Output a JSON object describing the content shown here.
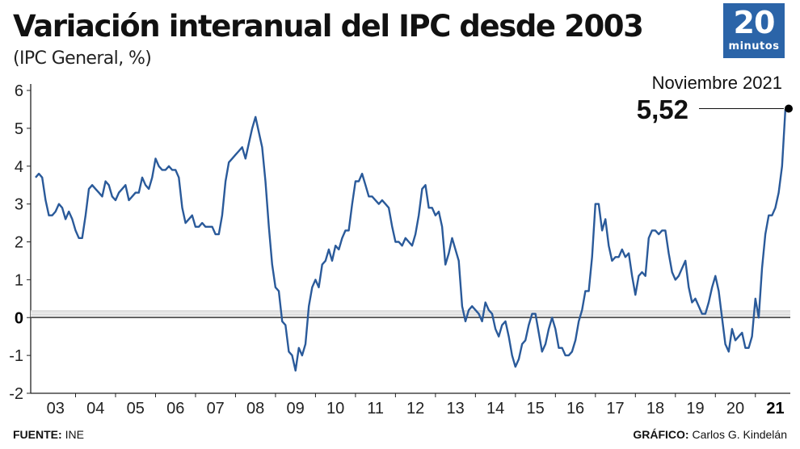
{
  "header": {
    "title": "Variación interanual del IPC desde 2003",
    "subtitle": "(IPC General, %)"
  },
  "logo": {
    "number": "20",
    "word": "minutos",
    "color": "#2b64a8"
  },
  "footer": {
    "source_label": "FUENTE:",
    "source_value": "INE",
    "credit_label": "GRÁFICO:",
    "credit_value": "Carlos G. Kindelán"
  },
  "chart_data": {
    "type": "line",
    "title": "Variación interanual del IPC desde 2003",
    "subtitle": "(IPC General, %)",
    "ylim": [
      -2,
      6
    ],
    "yticks": [
      "6",
      "5",
      "4",
      "3",
      "2",
      "1",
      "0",
      "-1",
      "-2"
    ],
    "xticks": [
      "03",
      "04",
      "05",
      "06",
      "07",
      "08",
      "09",
      "10",
      "11",
      "12",
      "13",
      "14",
      "15",
      "16",
      "17",
      "18",
      "19",
      "20",
      "21"
    ],
    "x_start": "2003-01",
    "x_end": "2021-11",
    "grid": false,
    "line_color": "#2a5a9a",
    "annotation": {
      "label": "Noviembre 2021",
      "value": "5,52",
      "date": "2021-11",
      "y": 5.52
    },
    "series": [
      {
        "values": [
          3.7,
          3.8,
          3.7,
          3.1,
          2.7,
          2.7,
          2.8,
          3.0,
          2.9,
          2.6,
          2.8,
          2.6,
          2.3,
          2.1,
          2.1,
          2.7,
          3.4,
          3.5,
          3.4,
          3.3,
          3.2,
          3.6,
          3.5,
          3.2,
          3.1,
          3.3,
          3.4,
          3.5,
          3.1,
          3.2,
          3.3,
          3.3,
          3.7,
          3.5,
          3.4,
          3.7,
          4.2,
          4.0,
          3.9,
          3.9,
          4.0,
          3.9,
          3.9,
          3.7,
          2.9,
          2.5,
          2.6,
          2.7,
          2.4,
          2.4,
          2.5,
          2.4,
          2.4,
          2.4,
          2.2,
          2.2,
          2.7,
          3.6,
          4.1,
          4.2,
          4.3,
          4.4,
          4.5,
          4.2,
          4.6,
          5.0,
          5.3,
          4.9,
          4.5,
          3.6,
          2.4,
          1.4,
          0.8,
          0.7,
          -0.1,
          -0.2,
          -0.9,
          -1.0,
          -1.4,
          -0.8,
          -1.0,
          -0.7,
          0.3,
          0.8,
          1.0,
          0.8,
          1.4,
          1.5,
          1.8,
          1.5,
          1.9,
          1.8,
          2.1,
          2.3,
          2.3,
          3.0,
          3.6,
          3.6,
          3.8,
          3.5,
          3.2,
          3.2,
          3.1,
          3.0,
          3.1,
          3.0,
          2.9,
          2.4,
          2.0,
          2.0,
          1.9,
          2.1,
          2.0,
          1.9,
          2.2,
          2.7,
          3.4,
          3.5,
          2.9,
          2.9,
          2.7,
          2.8,
          2.4,
          1.4,
          1.7,
          2.1,
          1.8,
          1.5,
          0.3,
          -0.1,
          0.2,
          0.3,
          0.2,
          0.1,
          -0.1,
          0.4,
          0.2,
          0.1,
          -0.3,
          -0.5,
          -0.2,
          -0.1,
          -0.5,
          -1.0,
          -1.3,
          -1.1,
          -0.7,
          -0.6,
          -0.2,
          0.1,
          0.1,
          -0.4,
          -0.9,
          -0.7,
          -0.3,
          0.0,
          -0.3,
          -0.8,
          -0.8,
          -1.0,
          -1.0,
          -0.9,
          -0.6,
          -0.1,
          0.2,
          0.7,
          0.7,
          1.6,
          3.0,
          3.0,
          2.3,
          2.6,
          1.9,
          1.5,
          1.6,
          1.6,
          1.8,
          1.6,
          1.7,
          1.1,
          0.6,
          1.1,
          1.2,
          1.1,
          2.1,
          2.3,
          2.3,
          2.2,
          2.3,
          2.3,
          1.7,
          1.2,
          1.0,
          1.1,
          1.3,
          1.5,
          0.8,
          0.4,
          0.5,
          0.3,
          0.1,
          0.1,
          0.4,
          0.8,
          1.1,
          0.7,
          0.0,
          -0.7,
          -0.9,
          -0.3,
          -0.6,
          -0.5,
          -0.4,
          -0.8,
          -0.8,
          -0.5,
          0.5,
          0.0,
          1.3,
          2.2,
          2.7,
          2.7,
          2.9,
          3.3,
          4.0,
          5.5,
          5.52
        ]
      }
    ]
  }
}
